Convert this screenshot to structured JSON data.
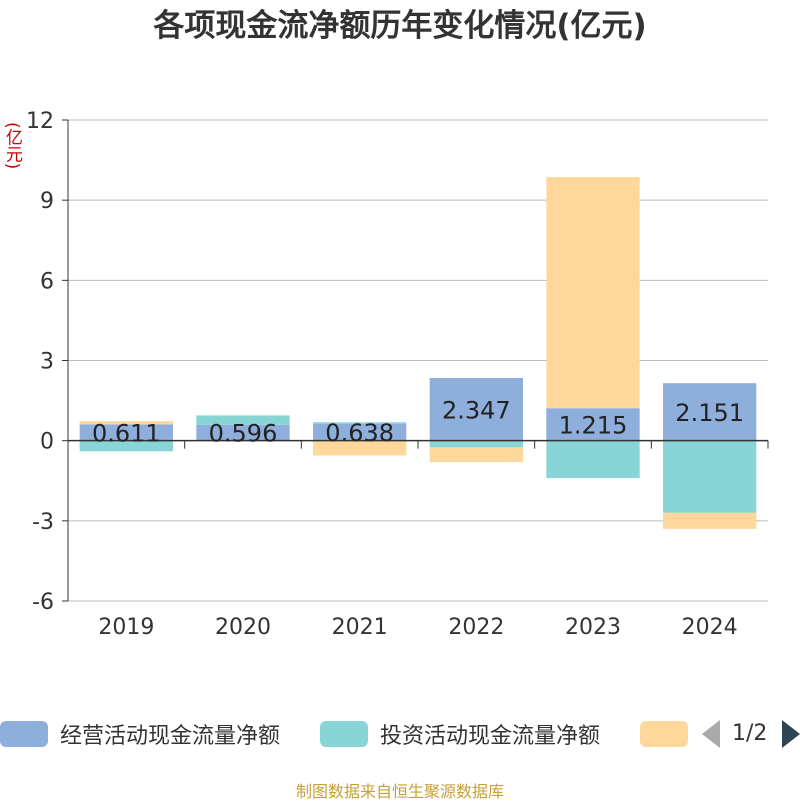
{
  "title": "各项现金流净额历年变化情况(亿元)",
  "unit_label": "(亿元)",
  "source": "制图数据来自恒生聚源数据库",
  "pager": {
    "text": "1/2"
  },
  "colors": {
    "operating": "#8eaedc",
    "investing": "#87d5d6",
    "financing": "#fdd89a",
    "axis": "#333333",
    "grid": "#bbbbbb",
    "text": "#333333"
  },
  "chart_data": {
    "type": "bar",
    "stacked": true,
    "categories": [
      "2019",
      "2020",
      "2021",
      "2022",
      "2023",
      "2024"
    ],
    "yticks": [
      "12",
      "9",
      "6",
      "3",
      "0",
      "-3",
      "-6"
    ],
    "ylim": [
      -6,
      12
    ],
    "grid": true,
    "legend_position": "bottom",
    "series": [
      {
        "name": "经营活动现金流量净额",
        "color": "#8eaedc",
        "values": [
          0.611,
          0.596,
          0.638,
          2.347,
          1.215,
          2.151
        ],
        "labels": [
          "0.611",
          "0.596",
          "0.638",
          "2.347",
          "1.215",
          "2.151"
        ]
      },
      {
        "name": "投资活动现金流量净额",
        "color": "#87d5d6",
        "values": [
          -0.4,
          0.35,
          0.05,
          -0.25,
          -1.4,
          -2.7
        ],
        "labels": []
      },
      {
        "name": "",
        "color": "#fdd89a",
        "values": [
          0.12,
          0.0,
          -0.55,
          -0.55,
          8.65,
          -0.6
        ],
        "labels": []
      }
    ]
  }
}
